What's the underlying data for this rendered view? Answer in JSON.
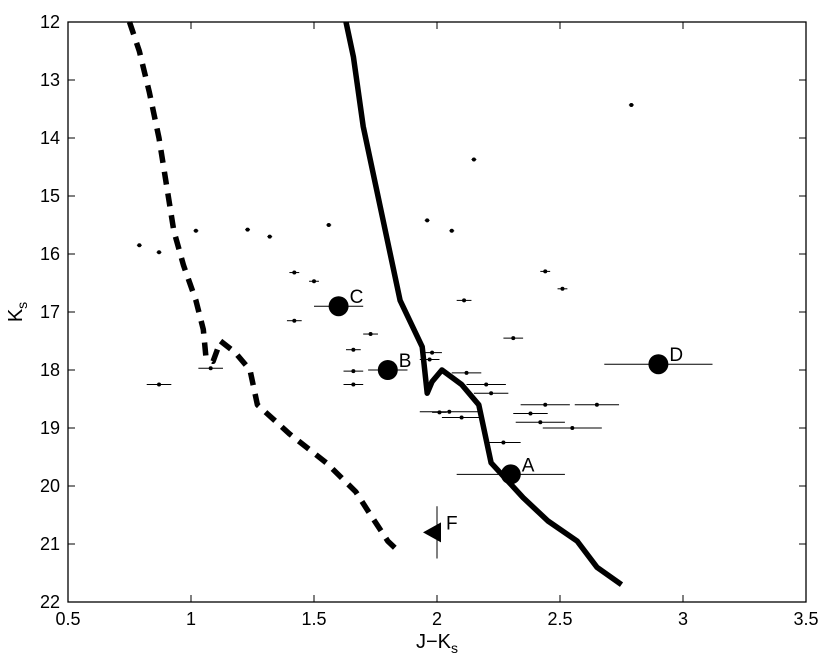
{
  "chart_data": {
    "type": "scatter",
    "xlabel": "J−K",
    "xlabel_sub": "s",
    "ylabel": "K",
    "ylabel_sub": "s",
    "xlim": [
      0.5,
      3.5
    ],
    "ylim": [
      22,
      12
    ],
    "y_inverted": true,
    "grid": false,
    "xticks": [
      {
        "value": 0.5,
        "label": "0.5"
      },
      {
        "value": 1,
        "label": "1"
      },
      {
        "value": 1.5,
        "label": "1.5"
      },
      {
        "value": 2,
        "label": "2"
      },
      {
        "value": 2.5,
        "label": "2.5"
      },
      {
        "value": 3,
        "label": "3"
      },
      {
        "value": 3.5,
        "label": "3.5"
      }
    ],
    "yticks": [
      {
        "value": 12,
        "label": "12"
      },
      {
        "value": 13,
        "label": "13"
      },
      {
        "value": 14,
        "label": "14"
      },
      {
        "value": 15,
        "label": "15"
      },
      {
        "value": 16,
        "label": "16"
      },
      {
        "value": 17,
        "label": "17"
      },
      {
        "value": 18,
        "label": "18"
      },
      {
        "value": 19,
        "label": "19"
      },
      {
        "value": 20,
        "label": "20"
      },
      {
        "value": 21,
        "label": "21"
      },
      {
        "value": 22,
        "label": "22"
      }
    ],
    "curves": [
      {
        "style": "dashed",
        "points": [
          [
            0.75,
            12
          ],
          [
            0.79,
            12.5
          ],
          [
            0.83,
            13.2
          ],
          [
            0.87,
            14
          ],
          [
            0.9,
            14.8
          ],
          [
            0.93,
            15.6
          ],
          [
            0.97,
            16.2
          ],
          [
            1.02,
            16.8
          ],
          [
            1.05,
            17.3
          ],
          [
            1.06,
            17.75
          ],
          [
            1.09,
            17.85
          ],
          [
            1.12,
            17.5
          ],
          [
            1.18,
            17.7
          ],
          [
            1.24,
            18
          ],
          [
            1.27,
            18.6
          ],
          [
            1.4,
            19.1
          ],
          [
            1.55,
            19.6
          ],
          [
            1.67,
            20.1
          ],
          [
            1.73,
            20.5
          ],
          [
            1.8,
            20.95
          ],
          [
            1.85,
            21.15
          ]
        ]
      },
      {
        "style": "solid",
        "points": [
          [
            1.63,
            12
          ],
          [
            1.66,
            12.6
          ],
          [
            1.7,
            13.8
          ],
          [
            1.75,
            14.8
          ],
          [
            1.8,
            15.8
          ],
          [
            1.85,
            16.8
          ],
          [
            1.94,
            17.6
          ],
          [
            1.96,
            18.4
          ],
          [
            1.98,
            18.2
          ],
          [
            2.02,
            18
          ],
          [
            2.1,
            18.25
          ],
          [
            2.17,
            18.6
          ],
          [
            2.22,
            19.6
          ],
          [
            2.35,
            20.2
          ],
          [
            2.45,
            20.6
          ],
          [
            2.57,
            20.95
          ],
          [
            2.65,
            21.4
          ],
          [
            2.75,
            21.7
          ]
        ]
      }
    ],
    "points": [
      {
        "x": 0.79,
        "y": 15.85,
        "xerr": 0.01
      },
      {
        "x": 0.87,
        "y": 15.97,
        "xerr": 0.01
      },
      {
        "x": 1.02,
        "y": 15.6,
        "xerr": 0.01
      },
      {
        "x": 1.23,
        "y": 15.58,
        "xerr": 0.01
      },
      {
        "x": 1.32,
        "y": 15.7,
        "xerr": 0.01
      },
      {
        "x": 1.56,
        "y": 15.5,
        "xerr": 0.01
      },
      {
        "x": 1.96,
        "y": 15.42,
        "xerr": 0.01
      },
      {
        "x": 2.06,
        "y": 15.6,
        "xerr": 0.01
      },
      {
        "x": 2.15,
        "y": 14.37,
        "xerr": 0.01
      },
      {
        "x": 2.79,
        "y": 13.43,
        "xerr": 0.01
      },
      {
        "x": 1.42,
        "y": 16.32,
        "xerr": 0.02
      },
      {
        "x": 1.5,
        "y": 16.47,
        "xerr": 0.02
      },
      {
        "x": 1.42,
        "y": 17.15,
        "xerr": 0.03
      },
      {
        "x": 1.73,
        "y": 17.38,
        "xerr": 0.03
      },
      {
        "x": 1.66,
        "y": 17.65,
        "xerr": 0.03
      },
      {
        "x": 1.66,
        "y": 18.02,
        "xerr": 0.04
      },
      {
        "x": 1.66,
        "y": 18.25,
        "xerr": 0.04
      },
      {
        "x": 0.87,
        "y": 18.25,
        "xerr": 0.05
      },
      {
        "x": 1.08,
        "y": 17.97,
        "xerr": 0.05
      },
      {
        "x": 1.98,
        "y": 17.7,
        "xerr": 0.04
      },
      {
        "x": 1.97,
        "y": 17.82,
        "xerr": 0.04
      },
      {
        "x": 2.11,
        "y": 16.8,
        "xerr": 0.03
      },
      {
        "x": 2.44,
        "y": 16.3,
        "xerr": 0.02
      },
      {
        "x": 2.51,
        "y": 16.6,
        "xerr": 0.02
      },
      {
        "x": 2.31,
        "y": 17.45,
        "xerr": 0.04
      },
      {
        "x": 2.12,
        "y": 18.05,
        "xerr": 0.06
      },
      {
        "x": 2.2,
        "y": 18.25,
        "xerr": 0.08
      },
      {
        "x": 2.22,
        "y": 18.4,
        "xerr": 0.07
      },
      {
        "x": 2.05,
        "y": 18.72,
        "xerr": 0.12
      },
      {
        "x": 2.01,
        "y": 18.73,
        "xerr": 0.03
      },
      {
        "x": 2.1,
        "y": 18.82,
        "xerr": 0.08
      },
      {
        "x": 2.44,
        "y": 18.6,
        "xerr": 0.1
      },
      {
        "x": 2.38,
        "y": 18.75,
        "xerr": 0.07
      },
      {
        "x": 2.42,
        "y": 18.9,
        "xerr": 0.1
      },
      {
        "x": 2.55,
        "y": 19,
        "xerr": 0.12
      },
      {
        "x": 2.65,
        "y": 18.6,
        "xerr": 0.09
      },
      {
        "x": 2.27,
        "y": 19.25,
        "xerr": 0.07
      }
    ],
    "annotations": [
      {
        "label": "A",
        "x": 2.3,
        "y": 19.8,
        "xerr": 0.22,
        "marker": "circle"
      },
      {
        "label": "B",
        "x": 1.8,
        "y": 18,
        "xerr": 0.08,
        "marker": "circle"
      },
      {
        "label": "C",
        "x": 1.6,
        "y": 16.9,
        "xerr": 0.1,
        "marker": "circle"
      },
      {
        "label": "D",
        "x": 2.9,
        "y": 17.9,
        "xerr": 0.22,
        "marker": "circle"
      },
      {
        "label": "F",
        "x": 2,
        "y": 20.8,
        "yerr": 0.45,
        "marker": "triangle-left"
      }
    ]
  }
}
